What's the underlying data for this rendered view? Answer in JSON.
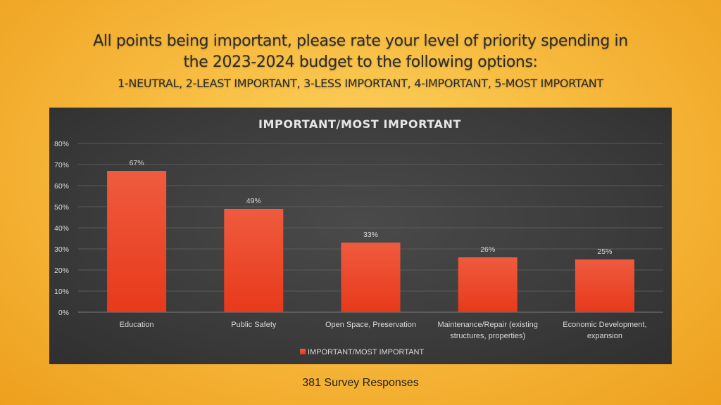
{
  "slide": {
    "title_line1": "All points being important, please rate your level of priority spending in",
    "title_line2": "the 2023-2024 budget to the following options:",
    "scale_line": "1-NEUTRAL, 2-LEAST IMPORTANT, 3-LESS IMPORTANT, 4-IMPORTANT, 5-MOST IMPORTANT",
    "footer": "381 Survey Responses"
  },
  "colors": {
    "bar_top": "#ef5b3e",
    "bar_bottom": "#e8391b",
    "gridline": "#5a5a5a",
    "axis_text": "#d9d9d9",
    "chart_title": "#e6e6e6"
  },
  "chart_data": {
    "type": "bar",
    "title": "IMPORTANT/MOST IMPORTANT",
    "categories": [
      [
        "Education"
      ],
      [
        "Public Safety"
      ],
      [
        "Open Space, Preservation"
      ],
      [
        "Maintenance/Repair (existing",
        "structures, properties)"
      ],
      [
        "Economic Development,",
        "expansion"
      ]
    ],
    "series": [
      {
        "name": "IMPORTANT/MOST IMPORTANT",
        "values": [
          67,
          49,
          33,
          26,
          25
        ],
        "labels": [
          "67%",
          "49%",
          "33%",
          "26%",
          "25%"
        ]
      }
    ],
    "ylim": [
      0,
      80
    ],
    "yticks": [
      "0%",
      "10%",
      "20%",
      "30%",
      "40%",
      "50%",
      "60%",
      "70%",
      "80%"
    ],
    "ytick_values": [
      0,
      10,
      20,
      30,
      40,
      50,
      60,
      70,
      80
    ],
    "grid": true,
    "legend_position": "bottom"
  }
}
